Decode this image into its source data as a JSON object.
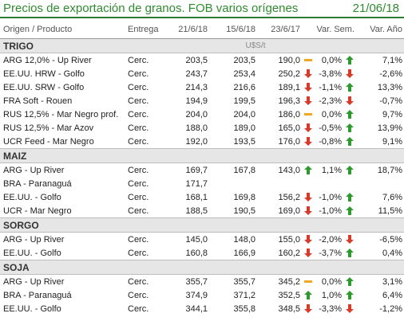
{
  "header": {
    "title": "Precios de exportación de granos. FOB varios orígenes",
    "date": "21/06/18"
  },
  "columns": [
    "Origen / Producto",
    "Entrega",
    "21/6/18",
    "15/6/18",
    "23/6/17",
    "Var. Sem.",
    "Var. Año"
  ],
  "unit": "U$S/t",
  "colors": {
    "up": "#2e9a2e",
    "down": "#d93a2a",
    "flat": "#f0a81c",
    "accent": "#2e8b2e"
  },
  "groups": [
    {
      "name": "TRIGO",
      "rows": [
        {
          "product": "ARG 12,0% - Up River",
          "delivery": "Cerc.",
          "v1": "203,5",
          "v2": "203,5",
          "v3": "190,0",
          "t3": "flat",
          "sem": "0,0%",
          "tsem": "up",
          "anio": "7,1%"
        },
        {
          "product": "EE.UU. HRW - Golfo",
          "delivery": "Cerc.",
          "v1": "243,7",
          "v2": "253,4",
          "v3": "250,2",
          "t3": "down",
          "sem": "-3,8%",
          "tsem": "down",
          "anio": "-2,6%"
        },
        {
          "product": "EE.UU. SRW - Golfo",
          "delivery": "Cerc.",
          "v1": "214,3",
          "v2": "216,6",
          "v3": "189,1",
          "t3": "down",
          "sem": "-1,1%",
          "tsem": "up",
          "anio": "13,3%"
        },
        {
          "product": "FRA Soft - Rouen",
          "delivery": "Cerc.",
          "v1": "194,9",
          "v2": "199,5",
          "v3": "196,3",
          "t3": "down",
          "sem": "-2,3%",
          "tsem": "down",
          "anio": "-0,7%"
        },
        {
          "product": "RUS 12,5% - Mar Negro prof.",
          "delivery": "Cerc.",
          "v1": "204,0",
          "v2": "204,0",
          "v3": "186,0",
          "t3": "flat",
          "sem": "0,0%",
          "tsem": "up",
          "anio": "9,7%"
        },
        {
          "product": "RUS 12,5% - Mar Azov",
          "delivery": "Cerc.",
          "v1": "188,0",
          "v2": "189,0",
          "v3": "165,0",
          "t3": "down",
          "sem": "-0,5%",
          "tsem": "up",
          "anio": "13,9%"
        },
        {
          "product": "UCR Feed - Mar Negro",
          "delivery": "Cerc.",
          "v1": "192,0",
          "v2": "193,5",
          "v3": "176,0",
          "t3": "down",
          "sem": "-0,8%",
          "tsem": "up",
          "anio": "9,1%"
        }
      ]
    },
    {
      "name": "MAIZ",
      "rows": [
        {
          "product": "ARG - Up River",
          "delivery": "Cerc.",
          "v1": "169,7",
          "v2": "167,8",
          "v3": "143,0",
          "t3": "up",
          "sem": "1,1%",
          "tsem": "up",
          "anio": "18,7%"
        },
        {
          "product": "BRA - Paranaguá",
          "delivery": "Cerc.",
          "v1": "171,7",
          "v2": "",
          "v3": "",
          "t3": "",
          "sem": "",
          "tsem": "",
          "anio": ""
        },
        {
          "product": "EE.UU. - Golfo",
          "delivery": "Cerc.",
          "v1": "168,1",
          "v2": "169,8",
          "v3": "156,2",
          "t3": "down",
          "sem": "-1,0%",
          "tsem": "up",
          "anio": "7,6%"
        },
        {
          "product": "UCR - Mar Negro",
          "delivery": "Cerc.",
          "v1": "188,5",
          "v2": "190,5",
          "v3": "169,0",
          "t3": "down",
          "sem": "-1,0%",
          "tsem": "up",
          "anio": "11,5%"
        }
      ]
    },
    {
      "name": "SORGO",
      "rows": [
        {
          "product": "ARG - Up River",
          "delivery": "Cerc.",
          "v1": "145,0",
          "v2": "148,0",
          "v3": "155,0",
          "t3": "down",
          "sem": "-2,0%",
          "tsem": "down",
          "anio": "-6,5%"
        },
        {
          "product": "EE.UU. - Golfo",
          "delivery": "Cerc.",
          "v1": "160,8",
          "v2": "166,9",
          "v3": "160,2",
          "t3": "down",
          "sem": "-3,7%",
          "tsem": "up",
          "anio": "0,4%"
        }
      ]
    },
    {
      "name": "SOJA",
      "rows": [
        {
          "product": "ARG - Up River",
          "delivery": "Cerc.",
          "v1": "355,7",
          "v2": "355,7",
          "v3": "345,2",
          "t3": "flat",
          "sem": "0,0%",
          "tsem": "up",
          "anio": "3,1%"
        },
        {
          "product": "BRA - Paranaguá",
          "delivery": "Cerc.",
          "v1": "374,9",
          "v2": "371,2",
          "v3": "352,5",
          "t3": "up",
          "sem": "1,0%",
          "tsem": "up",
          "anio": "6,4%"
        },
        {
          "product": "EE.UU. - Golfo",
          "delivery": "Cerc.",
          "v1": "344,1",
          "v2": "355,8",
          "v3": "348,5",
          "t3": "down",
          "sem": "-3,3%",
          "tsem": "down",
          "anio": "-1,2%"
        }
      ]
    }
  ]
}
